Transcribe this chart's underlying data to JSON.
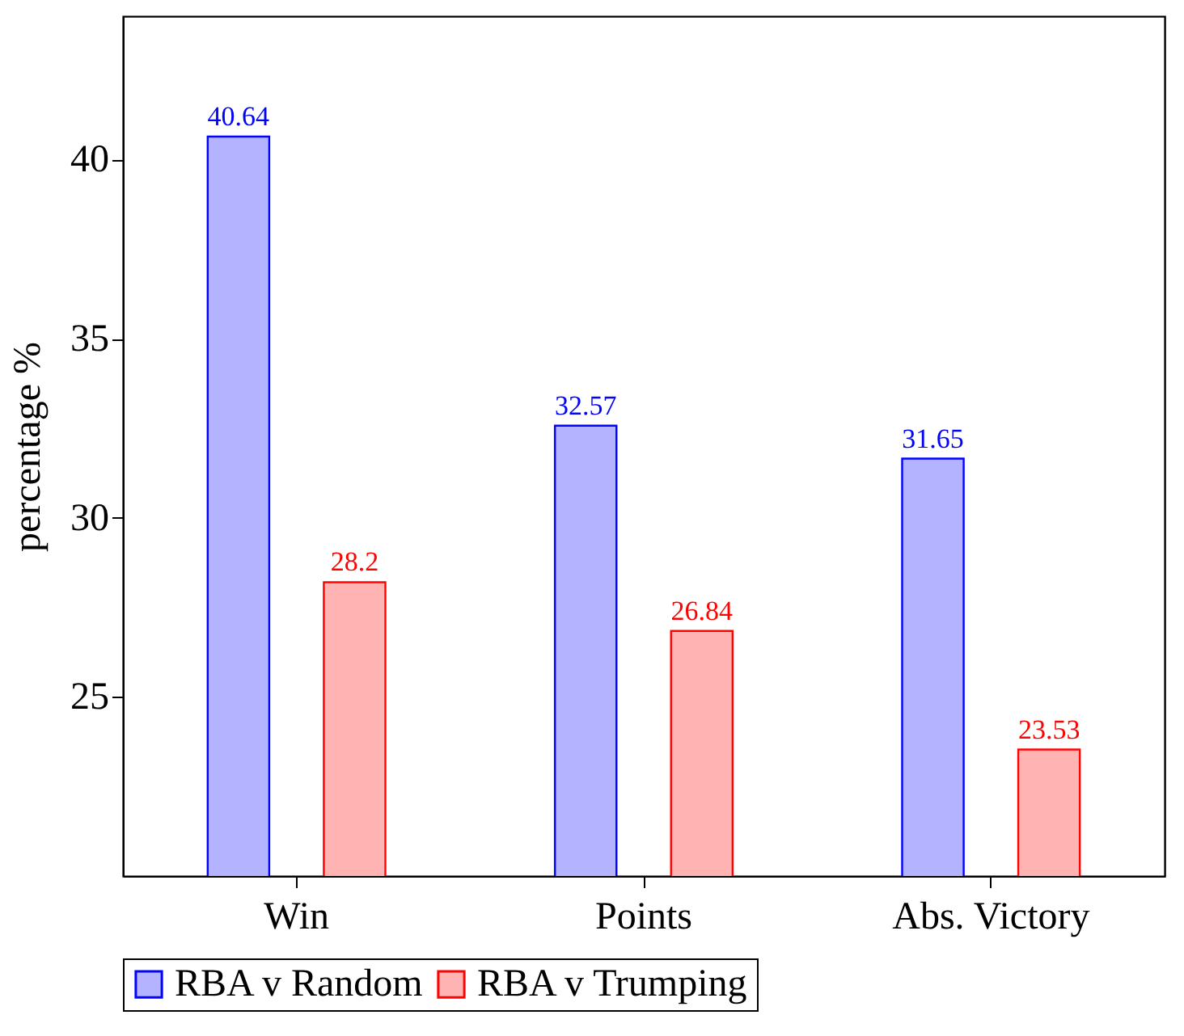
{
  "chart_data": {
    "type": "bar",
    "ylabel": "percentage %",
    "categories": [
      "Win",
      "Points",
      "Abs. Victory"
    ],
    "series": [
      {
        "name": "RBA v Random",
        "color": "#b3b3ff",
        "values": [
          40.64,
          32.57,
          31.65
        ]
      },
      {
        "name": "RBA v Trumping",
        "color": "#ffb3b3",
        "values": [
          28.2,
          26.84,
          23.53
        ]
      }
    ],
    "ylim": [
      20,
      44
    ],
    "yticks": [
      25,
      30,
      35,
      40
    ],
    "grid": false,
    "legend": "bottom",
    "data_labels": true
  }
}
